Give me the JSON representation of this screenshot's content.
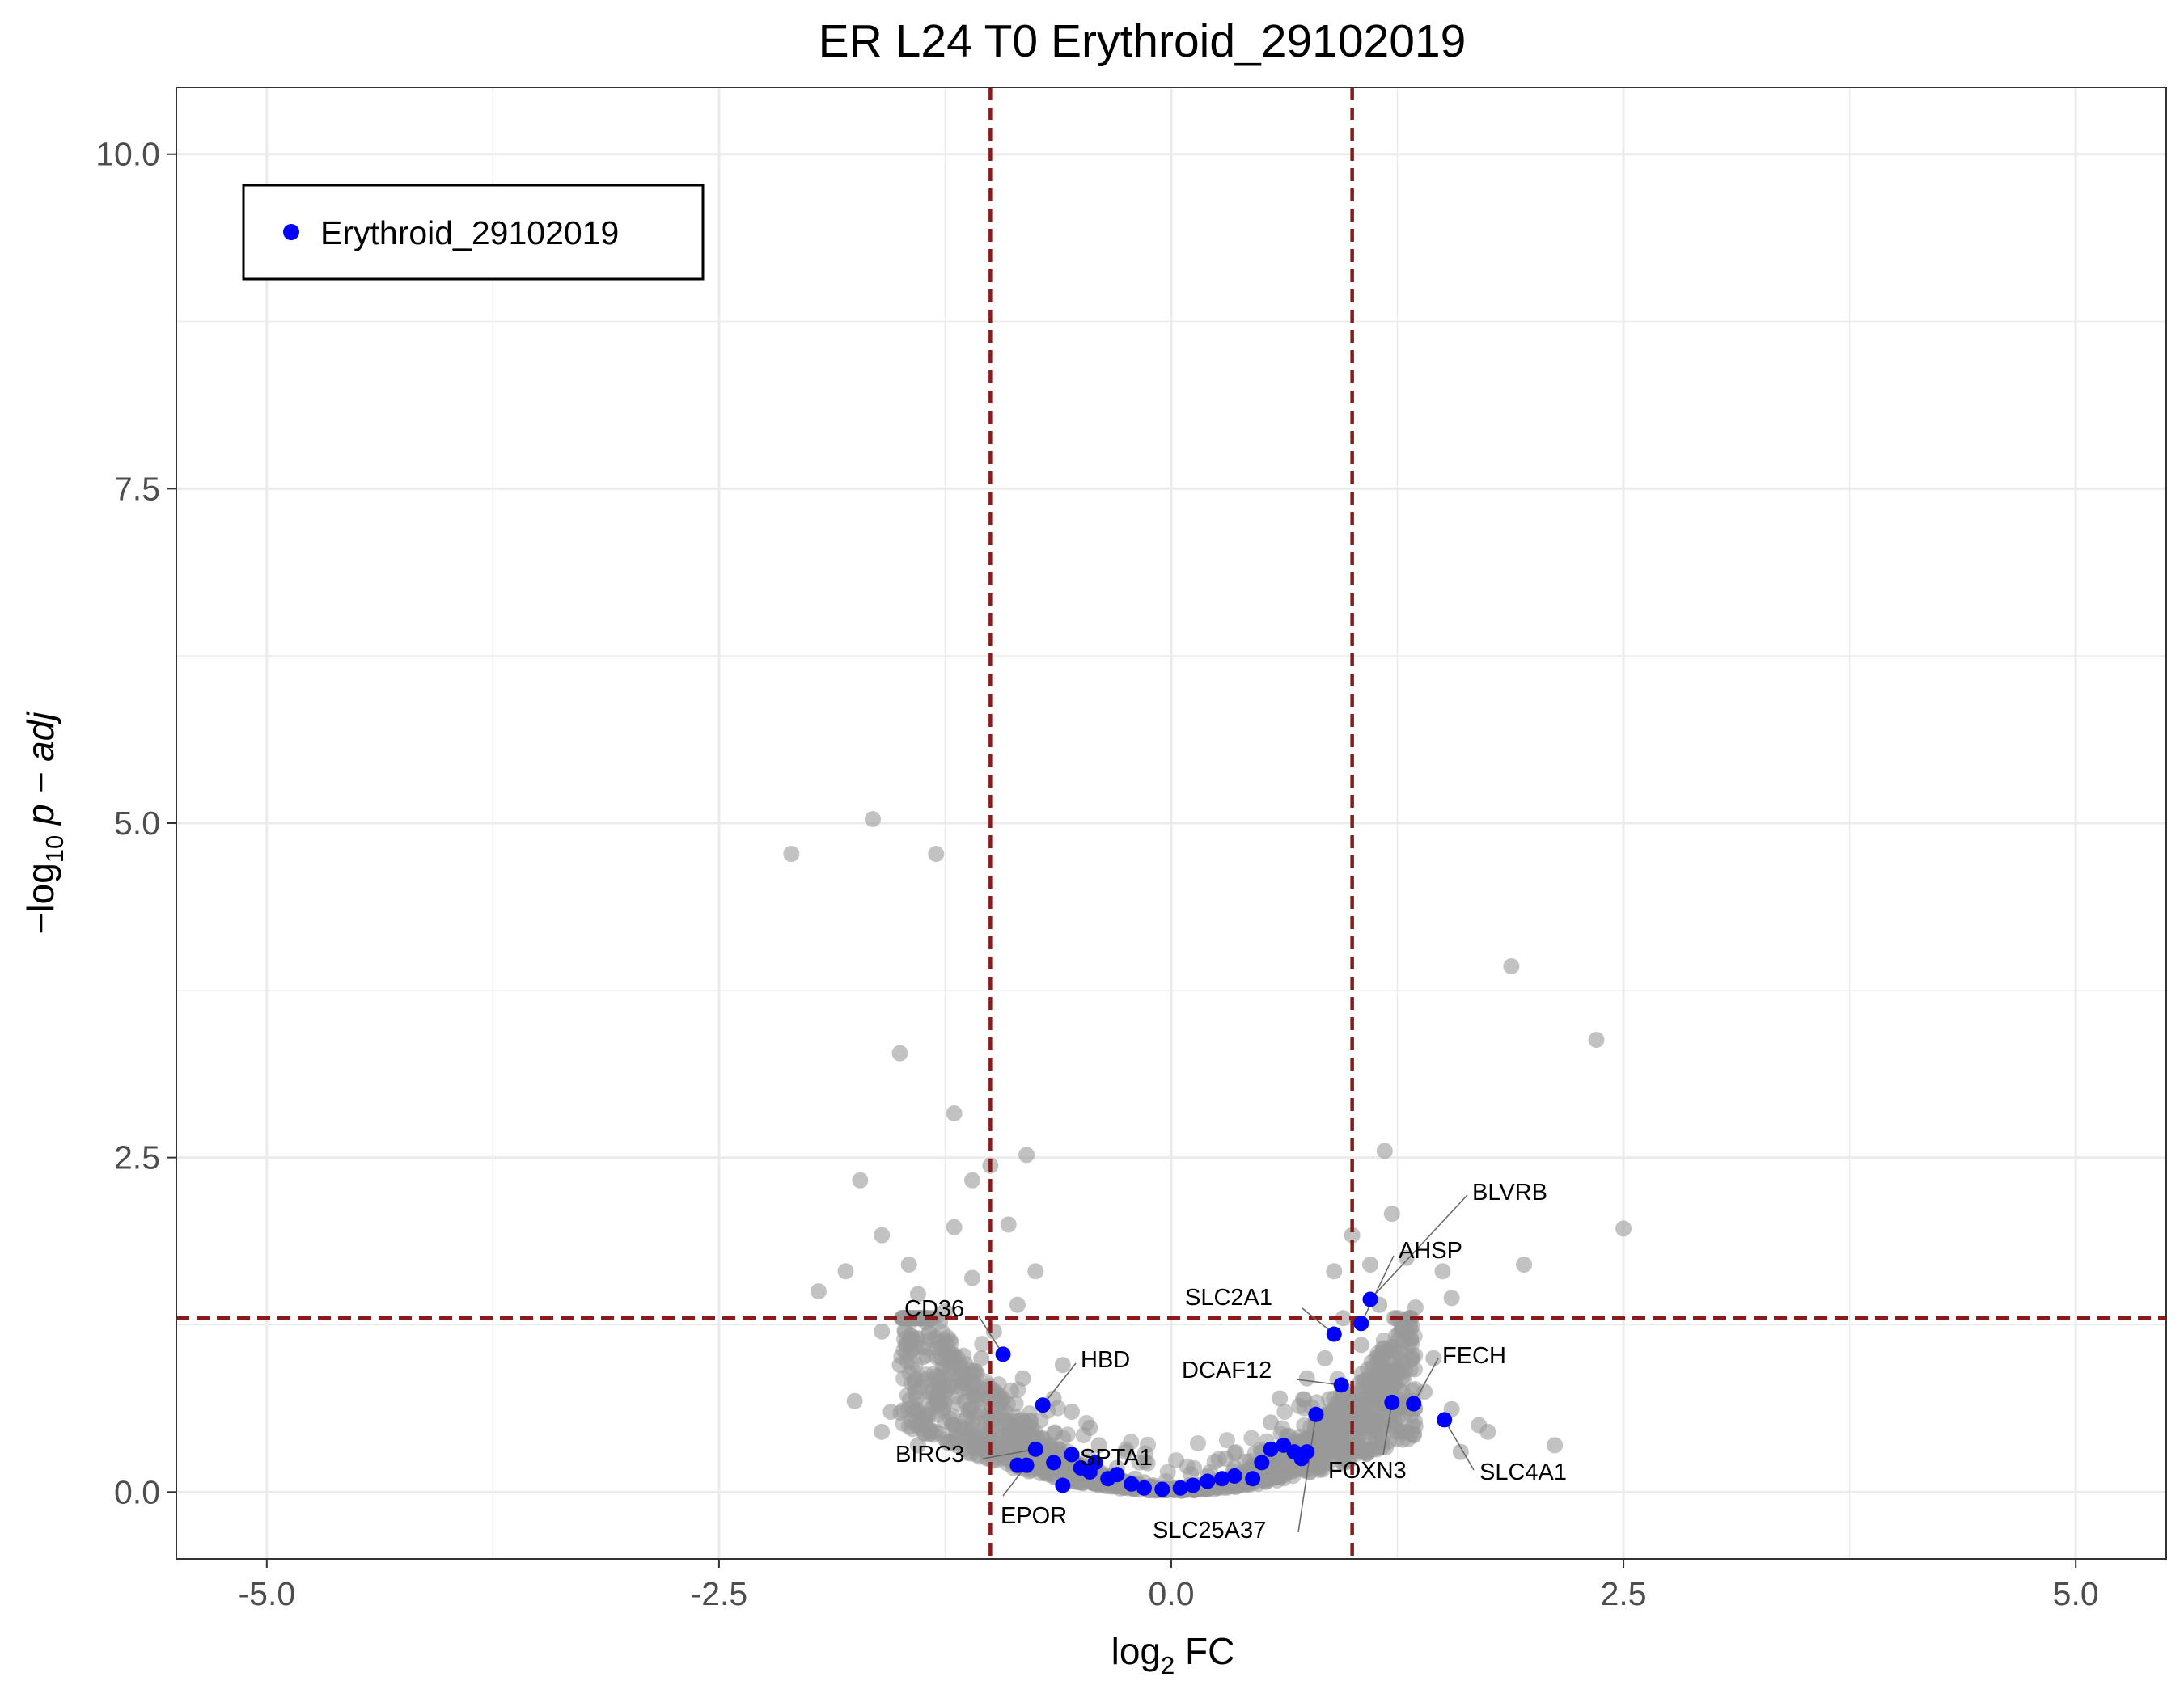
{
  "chart_data": {
    "type": "scatter",
    "title": "ER L24 T0 Erythroid_29102019",
    "xlabel": {
      "main": "log",
      "sub": "2",
      "suffix": " FC"
    },
    "ylabel": {
      "prefix": "−log",
      "sub": "10",
      "suffix": " p − adj"
    },
    "xlim": [
      -5.5,
      5.5
    ],
    "ylim": [
      -0.5,
      10.5
    ],
    "xticks": [
      -5.0,
      -2.5,
      0.0,
      2.5,
      5.0
    ],
    "xticklabels": [
      "-5.0",
      "-2.5",
      "0.0",
      "2.5",
      "5.0"
    ],
    "yticks": [
      0.0,
      2.5,
      5.0,
      7.5,
      10.0
    ],
    "yticklabels": [
      "0.0",
      "2.5",
      "5.0",
      "7.5",
      "10.0"
    ],
    "grid": true,
    "thresholds": {
      "x": [
        -1,
        1
      ],
      "y": 1.3
    },
    "legend": {
      "position": "top-left",
      "entries": [
        {
          "label": "Erythroid_29102019",
          "color": "#0000ff"
        }
      ]
    },
    "colors": {
      "background_points": "#999999",
      "highlight": "#0000ff",
      "threshold": "#8b1a1a",
      "grid": "#ebebeb"
    },
    "background_points": [
      [
        -2.1,
        4.77
      ],
      [
        -1.65,
        5.03
      ],
      [
        -1.3,
        4.77
      ],
      [
        -1.5,
        3.28
      ],
      [
        -1.2,
        2.83
      ],
      [
        -1.0,
        2.44
      ],
      [
        -0.8,
        2.52
      ],
      [
        -1.72,
        2.33
      ],
      [
        -1.1,
        2.33
      ],
      [
        -1.6,
        1.92
      ],
      [
        -1.2,
        1.98
      ],
      [
        -0.9,
        2.0
      ],
      [
        -1.8,
        1.65
      ],
      [
        -1.45,
        1.7
      ],
      [
        -1.1,
        1.6
      ],
      [
        -0.75,
        1.65
      ],
      [
        -1.95,
        1.5
      ],
      [
        -1.4,
        1.48
      ],
      [
        -1.6,
        1.2
      ],
      [
        -1.25,
        1.35
      ],
      [
        -0.85,
        1.4
      ],
      [
        -1.5,
        0.95
      ],
      [
        -1.05,
        1.0
      ],
      [
        -0.6,
        0.95
      ],
      [
        -1.75,
        0.68
      ],
      [
        -1.3,
        0.7
      ],
      [
        -0.95,
        0.72
      ],
      [
        -0.55,
        0.6
      ],
      [
        -1.6,
        0.45
      ],
      [
        -1.2,
        0.5
      ],
      [
        -0.9,
        0.45
      ],
      [
        -0.4,
        0.35
      ],
      [
        -1.4,
        0.35
      ],
      [
        -1.0,
        0.3
      ],
      [
        -0.7,
        0.25
      ],
      [
        -0.3,
        0.18
      ],
      [
        -0.2,
        0.1
      ],
      [
        -0.1,
        0.05
      ],
      [
        0.1,
        0.05
      ],
      [
        0.2,
        0.12
      ],
      [
        0.35,
        0.18
      ],
      [
        0.5,
        0.3
      ],
      [
        0.65,
        0.42
      ],
      [
        0.8,
        0.55
      ],
      [
        0.95,
        0.68
      ],
      [
        1.1,
        0.8
      ],
      [
        1.25,
        0.9
      ],
      [
        1.4,
        0.75
      ],
      [
        1.55,
        0.62
      ],
      [
        1.7,
        0.5
      ],
      [
        1.3,
        0.45
      ],
      [
        1.0,
        0.4
      ],
      [
        0.7,
        0.35
      ],
      [
        0.85,
        1.0
      ],
      [
        1.05,
        1.1
      ],
      [
        1.2,
        1.05
      ],
      [
        0.95,
        1.3
      ],
      [
        1.15,
        1.4
      ],
      [
        1.35,
        1.38
      ],
      [
        1.55,
        1.45
      ],
      [
        1.5,
        1.65
      ],
      [
        1.3,
        1.75
      ],
      [
        1.1,
        1.7
      ],
      [
        0.9,
        1.65
      ],
      [
        1.22,
        2.08
      ],
      [
        1.0,
        1.92
      ],
      [
        1.18,
        2.55
      ],
      [
        1.88,
        3.93
      ],
      [
        2.35,
        3.38
      ],
      [
        2.5,
        1.97
      ],
      [
        1.95,
        1.7
      ],
      [
        2.12,
        0.35
      ],
      [
        0.6,
        0.7
      ],
      [
        0.75,
        0.85
      ],
      [
        1.45,
        1.0
      ],
      [
        1.05,
        0.58
      ],
      [
        0.45,
        0.2
      ],
      [
        -0.45,
        0.48
      ],
      [
        -0.65,
        0.7
      ],
      [
        -0.82,
        0.85
      ],
      [
        -1.15,
        0.82
      ],
      [
        -1.35,
        0.58
      ],
      [
        -0.5,
        0.2
      ],
      [
        -0.25,
        0.3
      ],
      [
        0.3,
        0.25
      ],
      [
        0.55,
        0.52
      ],
      [
        1.6,
        0.3
      ],
      [
        1.75,
        0.45
      ],
      [
        -1.55,
        0.6
      ],
      [
        -0.98,
        1.2
      ]
    ],
    "highlight_points": [
      {
        "x": -0.93,
        "y": 1.03,
        "label": "CD36"
      },
      {
        "x": -0.71,
        "y": 0.65,
        "label": "HBD"
      },
      {
        "x": -0.75,
        "y": 0.32,
        "label": "BIRC3"
      },
      {
        "x": -0.8,
        "y": 0.2,
        "label": "EPOR"
      },
      {
        "x": -0.55,
        "y": 0.28,
        "label": "SPTA1"
      },
      {
        "x": 0.9,
        "y": 1.18,
        "label": "SLC2A1"
      },
      {
        "x": 1.05,
        "y": 1.26,
        "label": "AHSP"
      },
      {
        "x": 1.1,
        "y": 1.44,
        "label": "BLVRB"
      },
      {
        "x": 0.94,
        "y": 0.8,
        "label": "DCAF12"
      },
      {
        "x": 1.34,
        "y": 0.66,
        "label": "FECH"
      },
      {
        "x": 1.51,
        "y": 0.54,
        "label": "SLC4A1"
      },
      {
        "x": 1.22,
        "y": 0.67,
        "label": "FOXN3"
      },
      {
        "x": 0.8,
        "y": 0.58,
        "label": "SLC25A37"
      },
      {
        "x": -0.85,
        "y": 0.2
      },
      {
        "x": -0.65,
        "y": 0.22
      },
      {
        "x": -0.5,
        "y": 0.18
      },
      {
        "x": -0.45,
        "y": 0.15
      },
      {
        "x": -0.35,
        "y": 0.1
      },
      {
        "x": -0.3,
        "y": 0.13
      },
      {
        "x": -0.22,
        "y": 0.06
      },
      {
        "x": -0.15,
        "y": 0.03
      },
      {
        "x": -0.05,
        "y": 0.02
      },
      {
        "x": 0.05,
        "y": 0.03
      },
      {
        "x": 0.12,
        "y": 0.05
      },
      {
        "x": 0.2,
        "y": 0.08
      },
      {
        "x": 0.28,
        "y": 0.1
      },
      {
        "x": 0.35,
        "y": 0.12
      },
      {
        "x": 0.45,
        "y": 0.1
      },
      {
        "x": 0.5,
        "y": 0.22
      },
      {
        "x": 0.55,
        "y": 0.32
      },
      {
        "x": 0.62,
        "y": 0.35
      },
      {
        "x": 0.68,
        "y": 0.3
      },
      {
        "x": 0.72,
        "y": 0.25
      },
      {
        "x": 0.75,
        "y": 0.3
      },
      {
        "x": -0.42,
        "y": 0.22
      },
      {
        "x": -0.6,
        "y": 0.05
      }
    ]
  }
}
